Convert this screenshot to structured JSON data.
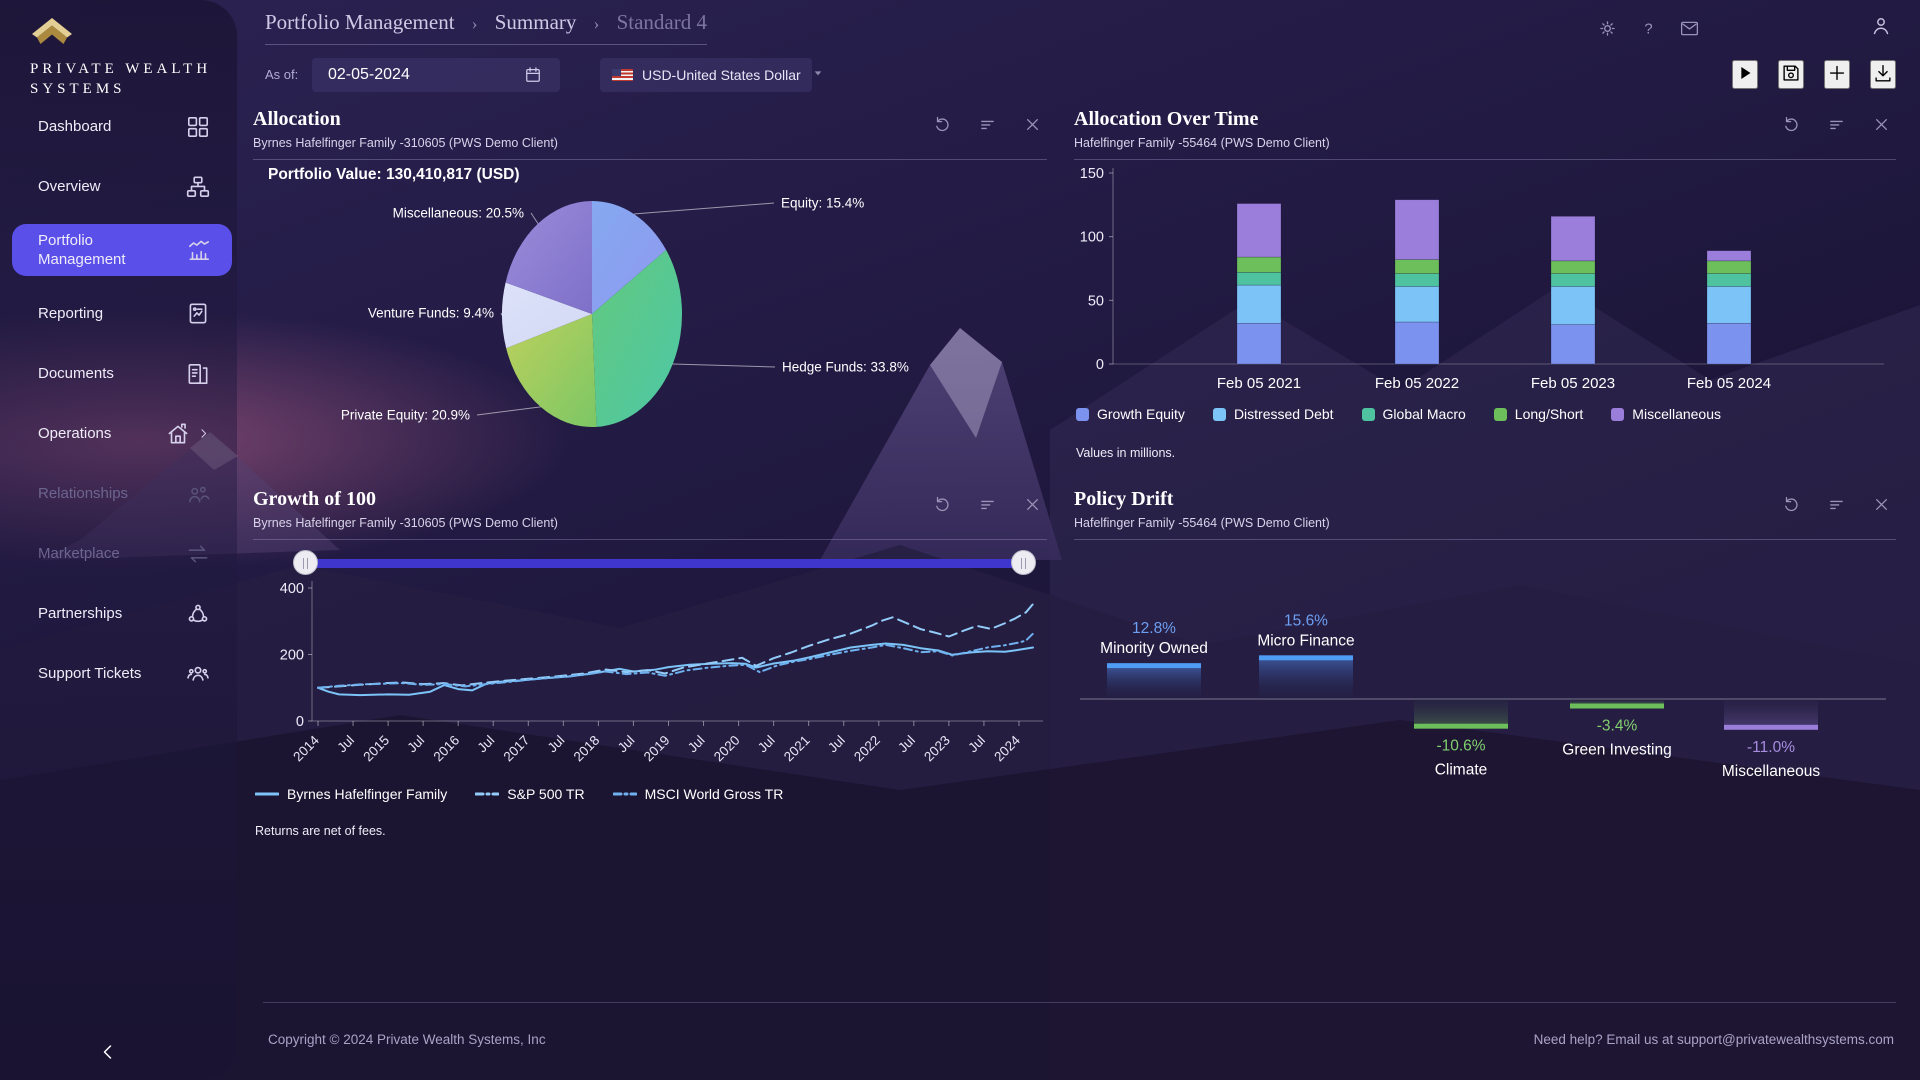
{
  "brand": {
    "line1": "PRIVATE WEALTH",
    "line2": "SYSTEMS"
  },
  "sidebar": {
    "items": [
      {
        "label": "Dashboard",
        "icon": "grid-icon"
      },
      {
        "label": "Overview",
        "icon": "sitemap-icon"
      },
      {
        "label": "Portfolio Management",
        "icon": "portfolio-chart-icon",
        "active": true
      },
      {
        "label": "Reporting",
        "icon": "report-icon"
      },
      {
        "label": "Documents",
        "icon": "documents-icon"
      },
      {
        "label": "Operations",
        "icon": "home-icon",
        "submenu": true
      },
      {
        "label": "Relationships",
        "icon": "people-icon",
        "disabled": true
      },
      {
        "label": "Marketplace",
        "icon": "swap-arrows-icon",
        "disabled": true
      },
      {
        "label": "Partnerships",
        "icon": "network-icon"
      },
      {
        "label": "Support Tickets",
        "icon": "people-group-icon"
      }
    ]
  },
  "breadcrumb": {
    "items": [
      "Portfolio Management",
      "Summary",
      "Standard 4"
    ],
    "separator": "›"
  },
  "topbar": {
    "icons": [
      "theme-sun",
      "help",
      "mail"
    ],
    "user_icon": "user"
  },
  "toolbar": {
    "as_of_label": "As of:",
    "date_value": "02-05-2024",
    "currency_value": "USD-United States Dollar",
    "action_icons": [
      "play",
      "save",
      "plus",
      "download"
    ]
  },
  "panels": {
    "action_icons": [
      "refresh",
      "filter",
      "close"
    ],
    "allocation": {
      "title": "Allocation",
      "subtitle": "Byrnes Hafelfinger Family -310605 (PWS Demo Client)",
      "portfolio_value": "Portfolio Value: 130,410,817 (USD)"
    },
    "allocation_over_time": {
      "title": "Allocation Over Time",
      "subtitle": "Hafelfinger Family -55464 (PWS Demo Client)",
      "footnote": "Values in millions."
    },
    "growth_of_100": {
      "title": "Growth of 100",
      "subtitle": "Byrnes Hafelfinger Family -310605 (PWS Demo Client)",
      "footnote": "Returns are net of fees."
    },
    "policy_drift": {
      "title": "Policy Drift",
      "subtitle": "Hafelfinger Family -55464 (PWS Demo Client)"
    }
  },
  "footer": {
    "copyright": "Copyright © 2024 Private Wealth Systems, Inc",
    "help": "Need help? Email us at support@privatewealthsystems.com"
  },
  "colors": {
    "accent": "#5b4fe9",
    "slider_bar": "#3e36cd",
    "logo_gold_light": "#e3cf94",
    "logo_gold_dark": "#ab8a40"
  },
  "chart_data": [
    {
      "id": "allocation",
      "type": "pie",
      "title": "Allocation",
      "slices": [
        {
          "label": "Equity",
          "value": 15.4,
          "color": "#85a9f0",
          "color2": "#8f98f0"
        },
        {
          "label": "Hedge Funds",
          "value": 33.8,
          "color": "#63c97d",
          "color2": "#4dc8a7"
        },
        {
          "label": "Private Equity",
          "value": 20.9,
          "color": "#bdd05c",
          "color2": "#7cc765"
        },
        {
          "label": "Venture Funds",
          "value": 9.4,
          "color": "#dde2f9",
          "color2": "#d2d8f5"
        },
        {
          "label": "Miscellaneous",
          "value": 20.5,
          "color": "#9b8cdb",
          "color2": "#7e70c8"
        }
      ]
    },
    {
      "id": "allocation_over_time",
      "type": "bar",
      "stacked": true,
      "categories": [
        "Feb 05 2021",
        "Feb 05 2022",
        "Feb 05 2023",
        "Feb 05 2024"
      ],
      "series": [
        {
          "name": "Growth Equity",
          "color": "#7b93ee",
          "values": [
            32,
            33,
            31,
            32
          ]
        },
        {
          "name": "Distressed Debt",
          "color": "#7cc3f7",
          "values": [
            30,
            28,
            30,
            29
          ]
        },
        {
          "name": "Global Macro",
          "color": "#4fc2a0",
          "values": [
            10,
            10,
            10,
            10
          ]
        },
        {
          "name": "Long/Short",
          "color": "#6cbf5a",
          "values": [
            12,
            11,
            10,
            10
          ]
        },
        {
          "name": "Miscellaneous",
          "color": "#9b7edb",
          "values": [
            42,
            47,
            35,
            8
          ]
        }
      ],
      "ylim": [
        0,
        150
      ],
      "yticks": [
        0,
        50,
        100,
        150
      ],
      "footnote": "Values in millions."
    },
    {
      "id": "growth_of_100",
      "type": "line",
      "ylim": [
        0,
        400
      ],
      "yticks": [
        0,
        200,
        400
      ],
      "xlim": [
        2014,
        2024.3
      ],
      "x_tick_labels": [
        "2014",
        "Jul",
        "2015",
        "Jul",
        "2016",
        "Jul",
        "2017",
        "Jul",
        "2018",
        "Jul",
        "2019",
        "Jul",
        "2020",
        "Jul",
        "2021",
        "Jul",
        "2022",
        "Jul",
        "2023",
        "Jul",
        "2024"
      ],
      "series": [
        {
          "name": "Byrnes Hafelfinger Family",
          "color": "#7cc4f8",
          "dash": "",
          "points": [
            [
              2014,
              100
            ],
            [
              2014.15,
              88
            ],
            [
              2014.3,
              80
            ],
            [
              2014.6,
              78
            ],
            [
              2015,
              80
            ],
            [
              2015.3,
              79
            ],
            [
              2015.6,
              88
            ],
            [
              2015.8,
              108
            ],
            [
              2016,
              96
            ],
            [
              2016.2,
              92
            ],
            [
              2016.4,
              112
            ],
            [
              2016.6,
              118
            ],
            [
              2016.9,
              122
            ],
            [
              2017.2,
              128
            ],
            [
              2017.6,
              134
            ],
            [
              2018,
              146
            ],
            [
              2018.3,
              157
            ],
            [
              2018.5,
              149
            ],
            [
              2018.8,
              154
            ],
            [
              2019,
              162
            ],
            [
              2019.3,
              169
            ],
            [
              2019.6,
              172
            ],
            [
              2019.9,
              174
            ],
            [
              2020.1,
              172
            ],
            [
              2020.25,
              161
            ],
            [
              2020.5,
              173
            ],
            [
              2020.8,
              182
            ],
            [
              2021,
              191
            ],
            [
              2021.3,
              206
            ],
            [
              2021.6,
              221
            ],
            [
              2021.9,
              229
            ],
            [
              2022.1,
              233
            ],
            [
              2022.35,
              229
            ],
            [
              2022.6,
              219
            ],
            [
              2022.85,
              212
            ],
            [
              2023.05,
              199
            ],
            [
              2023.3,
              206
            ],
            [
              2023.55,
              210
            ],
            [
              2023.8,
              208
            ],
            [
              2024,
              214
            ],
            [
              2024.2,
              221
            ]
          ]
        },
        {
          "name": "S&P 500 TR",
          "color": "#93ccf9",
          "dash": "11 6",
          "points": [
            [
              2014,
              100
            ],
            [
              2014.3,
              104
            ],
            [
              2014.6,
              109
            ],
            [
              2014.9,
              113
            ],
            [
              2015.2,
              116
            ],
            [
              2015.5,
              111
            ],
            [
              2015.8,
              114
            ],
            [
              2016.05,
              107
            ],
            [
              2016.3,
              113
            ],
            [
              2016.6,
              120
            ],
            [
              2017,
              127
            ],
            [
              2017.4,
              134
            ],
            [
              2017.8,
              143
            ],
            [
              2018.1,
              155
            ],
            [
              2018.4,
              147
            ],
            [
              2018.7,
              153
            ],
            [
              2018.95,
              143
            ],
            [
              2019.2,
              160
            ],
            [
              2019.5,
              171
            ],
            [
              2019.8,
              181
            ],
            [
              2020.05,
              190
            ],
            [
              2020.25,
              166
            ],
            [
              2020.5,
              189
            ],
            [
              2020.75,
              206
            ],
            [
              2021,
              226
            ],
            [
              2021.3,
              246
            ],
            [
              2021.6,
              263
            ],
            [
              2021.9,
              287
            ],
            [
              2022.05,
              302
            ],
            [
              2022.2,
              312
            ],
            [
              2022.4,
              294
            ],
            [
              2022.6,
              276
            ],
            [
              2022.8,
              266
            ],
            [
              2023,
              254
            ],
            [
              2023.2,
              271
            ],
            [
              2023.4,
              286
            ],
            [
              2023.6,
              277
            ],
            [
              2023.8,
              294
            ],
            [
              2023.95,
              309
            ],
            [
              2024.1,
              327
            ],
            [
              2024.2,
              352
            ]
          ]
        },
        {
          "name": "MSCI World Gross TR",
          "color": "#6fb0ef",
          "dash": "8 4 2 4",
          "points": [
            [
              2014,
              100
            ],
            [
              2014.3,
              106
            ],
            [
              2014.6,
              110
            ],
            [
              2014.9,
              112
            ],
            [
              2015.2,
              114
            ],
            [
              2015.5,
              109
            ],
            [
              2015.8,
              111
            ],
            [
              2016.1,
              104
            ],
            [
              2016.4,
              111
            ],
            [
              2016.7,
              117
            ],
            [
              2017,
              124
            ],
            [
              2017.4,
              131
            ],
            [
              2017.8,
              139
            ],
            [
              2018.1,
              149
            ],
            [
              2018.4,
              141
            ],
            [
              2018.7,
              146
            ],
            [
              2018.95,
              136
            ],
            [
              2019.25,
              152
            ],
            [
              2019.55,
              160
            ],
            [
              2019.85,
              166
            ],
            [
              2020.1,
              169
            ],
            [
              2020.3,
              147
            ],
            [
              2020.55,
              167
            ],
            [
              2020.8,
              179
            ],
            [
              2021,
              186
            ],
            [
              2021.3,
              199
            ],
            [
              2021.6,
              211
            ],
            [
              2021.9,
              221
            ],
            [
              2022.1,
              229
            ],
            [
              2022.35,
              219
            ],
            [
              2022.6,
              207
            ],
            [
              2022.85,
              210
            ],
            [
              2023.05,
              197
            ],
            [
              2023.3,
              209
            ],
            [
              2023.55,
              221
            ],
            [
              2023.8,
              228
            ],
            [
              2024,
              236
            ],
            [
              2024.1,
              242
            ],
            [
              2024.2,
              263
            ]
          ]
        }
      ],
      "footnote": "Returns are net of fees."
    },
    {
      "id": "policy_drift",
      "type": "bar",
      "bars": [
        {
          "label": "Minority Owned",
          "display": "12.8%",
          "value": 12.8,
          "cap_color": "#4f9cf5",
          "text_color": "#6d9ff2"
        },
        {
          "label": "Micro Finance",
          "display": "15.6%",
          "value": 15.6,
          "cap_color": "#4f9cf5",
          "text_color": "#6d9ff2"
        },
        {
          "label": "Climate",
          "display": "-10.6%",
          "value": -10.6,
          "cap_color": "#6cbf5a",
          "text_color": "#82cf6e"
        },
        {
          "label": "Green Investing",
          "display": "-3.4%",
          "value": -3.4,
          "cap_color": "#6cbf5a",
          "text_color": "#82cf6e"
        },
        {
          "label": "Miscellaneous",
          "display": "-11.0%",
          "value": -11.0,
          "cap_color": "#9b7edb",
          "text_color": "#a78ce0"
        }
      ]
    }
  ]
}
